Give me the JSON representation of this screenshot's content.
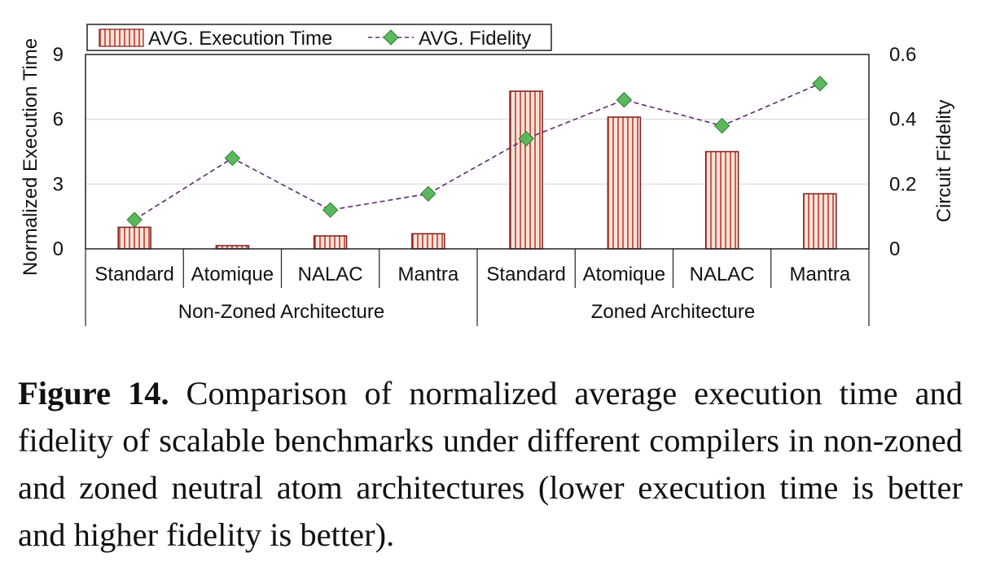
{
  "chart_data": {
    "type": "bar",
    "categories": [
      "Standard",
      "Atomique",
      "NALAC",
      "Mantra",
      "Standard",
      "Atomique",
      "NALAC",
      "Mantra"
    ],
    "groups": [
      {
        "label": "Non-Zoned Architecture",
        "count": 4
      },
      {
        "label": "Zoned Architecture",
        "count": 4
      }
    ],
    "series": [
      {
        "name": "AVG. Execution Time",
        "kind": "bar",
        "axis": "left",
        "values": [
          1.0,
          0.15,
          0.6,
          0.7,
          7.3,
          6.1,
          4.5,
          2.55
        ]
      },
      {
        "name": "AVG. Fidelity",
        "kind": "line",
        "axis": "right",
        "values": [
          0.09,
          0.28,
          0.12,
          0.17,
          0.34,
          0.46,
          0.38,
          0.51
        ]
      }
    ],
    "ylabel": "Normalized Execution Time",
    "y2label": "Circuit Fidelity",
    "ylim": [
      0,
      9
    ],
    "y2lim": [
      0,
      0.6
    ],
    "yticks": [
      "0",
      "3",
      "6",
      "9"
    ],
    "y2ticks": [
      "0",
      "0.2",
      "0.4",
      "0.6"
    ],
    "grid": true,
    "legend": "top",
    "colors": {
      "bar_fill": "#fde3d9",
      "bar_stripe": "#c0392b",
      "bar_edge": "#7b1d1d",
      "line": "#5b2a6e",
      "marker": "#5cb85c",
      "marker_edge": "#2e7d32"
    }
  },
  "caption": {
    "label": "Figure 14.",
    "text": "Comparison of normalized average execution time and fidelity of scalable benchmarks under different compilers in non-zoned and zoned neutral atom architectures (lower execution time is better and higher fidelity is better)."
  }
}
